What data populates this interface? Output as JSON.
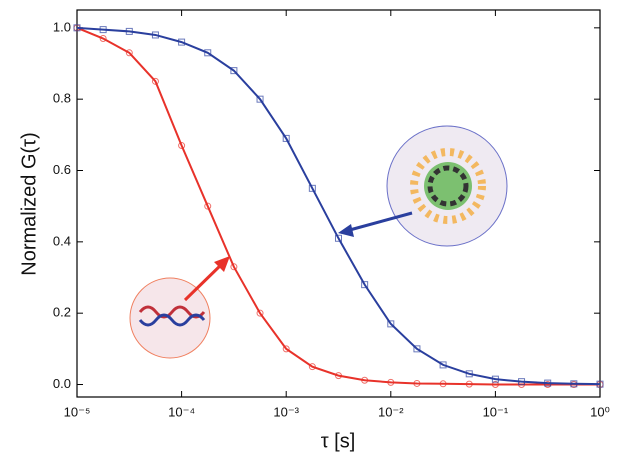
{
  "chart_data": {
    "type": "line",
    "xlabel": "τ [s]",
    "ylabel": "Normalized G(τ)",
    "xscale": "log",
    "xlim": [
      1e-05,
      1
    ],
    "xticks": [
      {
        "value": 1e-05,
        "label": "10⁻⁵"
      },
      {
        "value": 0.0001,
        "label": "10⁻⁴"
      },
      {
        "value": 0.001,
        "label": "10⁻³"
      },
      {
        "value": 0.01,
        "label": "10⁻²"
      },
      {
        "value": 0.1,
        "label": "10⁻¹"
      },
      {
        "value": 1,
        "label": "10⁰"
      }
    ],
    "ylim": [
      -0.035,
      1.05
    ],
    "yticks": [
      {
        "value": 0,
        "label": "0.0"
      },
      0.2,
      0.4,
      0.6,
      0.8,
      {
        "value": 1,
        "label": "1.0"
      }
    ],
    "x": [
      1e-05,
      1.778e-05,
      3.162e-05,
      5.623e-05,
      0.0001,
      0.0001778,
      0.0003162,
      0.0005623,
      0.001,
      0.001778,
      0.003162,
      0.005623,
      0.01,
      0.01778,
      0.03162,
      0.05623,
      0.1,
      0.1778,
      0.3162,
      0.5623,
      1
    ],
    "series": [
      {
        "color": "#e8322a",
        "marker": "circle",
        "values": [
          1.0,
          0.97,
          0.93,
          0.85,
          0.67,
          0.5,
          0.33,
          0.2,
          0.1,
          0.05,
          0.025,
          0.012,
          0.006,
          0.003,
          0.002,
          0.001,
          0,
          0,
          0,
          0,
          0
        ]
      },
      {
        "color": "#2a3f9e",
        "marker": "square",
        "values": [
          1.0,
          0.995,
          0.99,
          0.98,
          0.96,
          0.93,
          0.88,
          0.8,
          0.69,
          0.55,
          0.41,
          0.28,
          0.17,
          0.1,
          0.055,
          0.03,
          0.015,
          0.008,
          0.004,
          0.002,
          0.001
        ]
      }
    ]
  }
}
